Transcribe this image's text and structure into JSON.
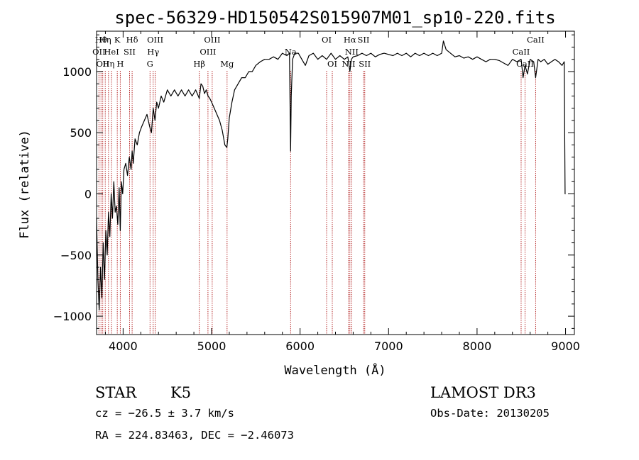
{
  "chart_data": {
    "type": "line",
    "title": "spec-56329-HD150542S015907M01_sp10-220.fits",
    "xlabel": "Wavelength (Å)",
    "ylabel": "Flux (relative)",
    "xlim": [
      3700,
      9100
    ],
    "ylim": [
      -1150,
      1330
    ],
    "xticks": [
      4000,
      5000,
      6000,
      7000,
      8000,
      9000
    ],
    "xtick_labels": [
      "4000",
      "5000",
      "6000",
      "7000",
      "8000",
      "9000"
    ],
    "yticks": [
      -1000,
      -500,
      0,
      500,
      1000
    ],
    "ytick_labels": [
      "−1000",
      "−500",
      "0",
      "500",
      "1000"
    ],
    "series": [
      {
        "name": "flux",
        "x": [
          3700,
          3715,
          3730,
          3745,
          3760,
          3775,
          3790,
          3805,
          3820,
          3835,
          3850,
          3865,
          3880,
          3895,
          3910,
          3925,
          3940,
          3955,
          3968,
          3980,
          3995,
          4010,
          4030,
          4050,
          4070,
          4090,
          4102,
          4115,
          4135,
          4160,
          4185,
          4210,
          4240,
          4270,
          4300,
          4320,
          4340,
          4360,
          4380,
          4400,
          4430,
          4460,
          4500,
          4540,
          4580,
          4620,
          4660,
          4700,
          4740,
          4780,
          4820,
          4861,
          4880,
          4900,
          4920,
          4940,
          4960,
          4980,
          5000,
          5030,
          5060,
          5090,
          5120,
          5150,
          5172,
          5183,
          5200,
          5230,
          5260,
          5300,
          5340,
          5380,
          5420,
          5460,
          5500,
          5550,
          5600,
          5650,
          5700,
          5750,
          5800,
          5850,
          5880,
          5893,
          5900,
          5915,
          5940,
          5980,
          6020,
          6060,
          6100,
          6150,
          6200,
          6250,
          6300,
          6350,
          6400,
          6450,
          6500,
          6540,
          6563,
          6580,
          6600,
          6650,
          6700,
          6750,
          6800,
          6850,
          6900,
          6950,
          7000,
          7050,
          7100,
          7150,
          7200,
          7250,
          7300,
          7350,
          7400,
          7450,
          7500,
          7550,
          7600,
          7620,
          7650,
          7700,
          7750,
          7800,
          7850,
          7900,
          7950,
          8000,
          8050,
          8100,
          8150,
          8200,
          8250,
          8300,
          8350,
          8400,
          8450,
          8498,
          8520,
          8542,
          8570,
          8600,
          8640,
          8662,
          8690,
          8720,
          8760,
          8800,
          8840,
          8880,
          8920,
          8960,
          8985,
          8995,
          9000
        ],
        "values": [
          -200,
          -700,
          -950,
          -600,
          -850,
          -400,
          -700,
          -300,
          -500,
          -150,
          -350,
          0,
          -200,
          100,
          -150,
          -100,
          -250,
          50,
          -300,
          100,
          0,
          200,
          250,
          150,
          300,
          200,
          350,
          250,
          450,
          400,
          500,
          550,
          600,
          650,
          550,
          500,
          700,
          600,
          750,
          700,
          800,
          750,
          850,
          800,
          850,
          800,
          850,
          800,
          850,
          800,
          850,
          780,
          900,
          880,
          820,
          850,
          800,
          780,
          750,
          700,
          650,
          600,
          520,
          400,
          380,
          450,
          620,
          750,
          850,
          900,
          950,
          950,
          1000,
          1000,
          1050,
          1080,
          1100,
          1100,
          1120,
          1100,
          1150,
          1130,
          1150,
          350,
          800,
          1100,
          1150,
          1150,
          1100,
          1050,
          1130,
          1150,
          1100,
          1130,
          1100,
          1150,
          1100,
          1130,
          1100,
          1120,
          1000,
          1100,
          1120,
          1130,
          1150,
          1130,
          1150,
          1120,
          1140,
          1150,
          1140,
          1130,
          1150,
          1130,
          1150,
          1120,
          1150,
          1130,
          1150,
          1130,
          1150,
          1130,
          1150,
          1250,
          1180,
          1150,
          1120,
          1130,
          1110,
          1120,
          1100,
          1120,
          1100,
          1080,
          1100,
          1100,
          1090,
          1070,
          1050,
          1100,
          1080,
          1100,
          950,
          1050,
          980,
          1100,
          1080,
          950,
          1100,
          1080,
          1100,
          1060,
          1080,
          1100,
          1080,
          1050,
          1080,
          0,
          0
        ]
      }
    ],
    "spectral_lines": [
      {
        "wavelength": 3727,
        "label": "OII",
        "row": 2
      },
      {
        "wavelength": 3750,
        "label": "Hθ",
        "row": 1
      },
      {
        "wavelength": 3770,
        "label": "OII",
        "row": 3
      },
      {
        "wavelength": 3798,
        "label": "Hη",
        "row": 1
      },
      {
        "wavelength": 3835,
        "label": "Hη",
        "row": 3
      },
      {
        "wavelength": 3869,
        "label": "HeI",
        "row": 2
      },
      {
        "wavelength": 3934,
        "label": "K",
        "row": 1
      },
      {
        "wavelength": 3968,
        "label": "H",
        "row": 3
      },
      {
        "wavelength": 4073,
        "label": "SII",
        "row": 2
      },
      {
        "wavelength": 4102,
        "label": "Hδ",
        "row": 1
      },
      {
        "wavelength": 4304,
        "label": "G",
        "row": 3
      },
      {
        "wavelength": 4340,
        "label": "Hγ",
        "row": 2
      },
      {
        "wavelength": 4363,
        "label": "OIII",
        "row": 1
      },
      {
        "wavelength": 4861,
        "label": "Hβ",
        "row": 3
      },
      {
        "wavelength": 4959,
        "label": "OIII",
        "row": 2
      },
      {
        "wavelength": 5007,
        "label": "OIII",
        "row": 1
      },
      {
        "wavelength": 5175,
        "label": "Mg",
        "row": 3
      },
      {
        "wavelength": 5893,
        "label": "Na",
        "row": 2
      },
      {
        "wavelength": 6300,
        "label": "OI",
        "row": 1
      },
      {
        "wavelength": 6364,
        "label": "OI",
        "row": 3
      },
      {
        "wavelength": 6548,
        "label": "NII",
        "row": 3
      },
      {
        "wavelength": 6563,
        "label": "Hα",
        "row": 1
      },
      {
        "wavelength": 6583,
        "label": "NII",
        "row": 2
      },
      {
        "wavelength": 6717,
        "label": "SII",
        "row": 1
      },
      {
        "wavelength": 6731,
        "label": "SII",
        "row": 3
      },
      {
        "wavelength": 8498,
        "label": "CaII",
        "row": 2
      },
      {
        "wavelength": 8542,
        "label": "CaII",
        "row": 3
      },
      {
        "wavelength": 8662,
        "label": "CaII",
        "row": 1
      }
    ]
  },
  "info": {
    "object_class": "STAR",
    "subclass": "K5",
    "survey": "LAMOST DR3",
    "cz": "cz = −26.5 ± 3.7 km/s",
    "obs_date": "Obs-Date: 20130205",
    "coords": "RA = 224.83463, DEC =  −2.46073"
  }
}
